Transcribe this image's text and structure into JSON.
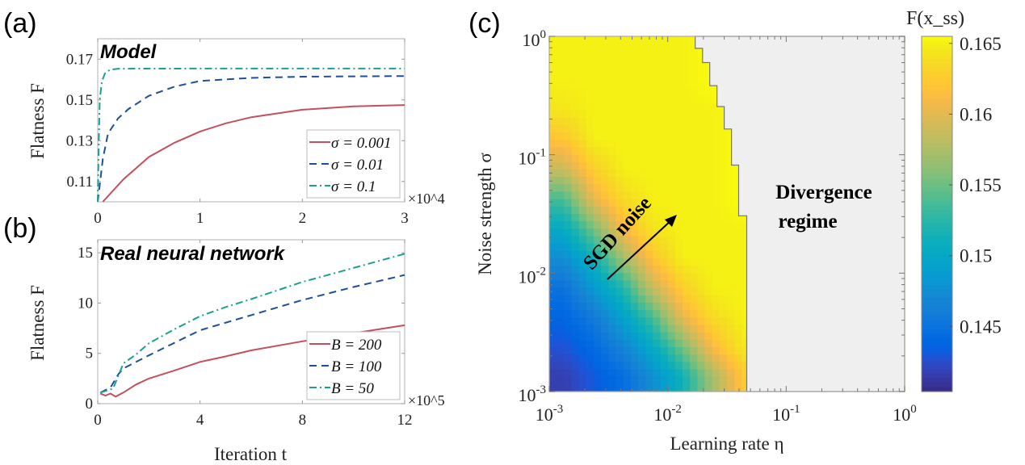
{
  "panels": {
    "a": {
      "label": "(a)"
    },
    "b": {
      "label": "(b)"
    },
    "c": {
      "label": "(c)"
    }
  },
  "chart_data": [
    {
      "type": "line",
      "panel": "a",
      "annotation": "Model",
      "ylabel": "Flatness F",
      "xlabel": "",
      "x_multiplier": "×10^4",
      "xlim": [
        0,
        3
      ],
      "ylim": [
        0.1,
        0.18
      ],
      "xticks": [
        0,
        1,
        2,
        3
      ],
      "xtick_labels": [
        "0",
        "1",
        "2",
        "3"
      ],
      "yticks": [
        0.11,
        0.13,
        0.15,
        0.17
      ],
      "ytick_labels": [
        "0.11",
        "0.13",
        "0.15",
        "0.17"
      ],
      "legend_position": "bottom-right",
      "series": [
        {
          "name": "σ = 0.001",
          "color": "#c4505f",
          "dash": "solid",
          "x": [
            0.05,
            0.25,
            0.5,
            0.75,
            1.0,
            1.25,
            1.5,
            2.0,
            2.5,
            3.0
          ],
          "y": [
            0.1,
            0.111,
            0.122,
            0.129,
            0.1345,
            0.1385,
            0.1415,
            0.1452,
            0.1468,
            0.1475
          ]
        },
        {
          "name": "σ = 0.01",
          "color": "#1f4f9c",
          "dash": "dashed",
          "x": [
            0.0,
            0.05,
            0.1,
            0.2,
            0.3,
            0.5,
            0.75,
            1.0,
            1.5,
            2.0,
            3.0
          ],
          "y": [
            0.1,
            0.121,
            0.1335,
            0.141,
            0.1455,
            0.152,
            0.1565,
            0.1593,
            0.1608,
            0.1614,
            0.1617
          ]
        },
        {
          "name": "σ = 0.1",
          "color": "#1aa08e",
          "dash": "dashdot",
          "x": [
            0.0,
            0.01,
            0.02,
            0.04,
            0.07,
            0.12,
            0.2,
            1.0,
            2.0,
            3.0
          ],
          "y": [
            0.1,
            0.13,
            0.15,
            0.159,
            0.163,
            0.1648,
            0.1653,
            0.1654,
            0.1654,
            0.1654
          ]
        }
      ]
    },
    {
      "type": "line",
      "panel": "b",
      "annotation": "Real neural network",
      "ylabel": "Flatness F",
      "xlabel": "Iteration t",
      "x_multiplier": "×10^5",
      "xlim": [
        0,
        12
      ],
      "ylim": [
        0,
        16.3
      ],
      "xticks": [
        0,
        4,
        8,
        12
      ],
      "xtick_labels": [
        "0",
        "4",
        "8",
        "12"
      ],
      "yticks": [
        0,
        5,
        10,
        15
      ],
      "ytick_labels": [
        "0",
        "5",
        "10",
        "15"
      ],
      "legend_position": "bottom-right",
      "series": [
        {
          "name": "B = 200",
          "color": "#c4505f",
          "dash": "solid",
          "x": [
            0.1,
            0.3,
            0.5,
            0.7,
            1.0,
            1.5,
            2,
            3,
            4,
            5,
            6,
            8,
            10,
            12
          ],
          "y": [
            1.0,
            0.8,
            1.0,
            0.7,
            1.1,
            1.9,
            2.5,
            3.3,
            4.15,
            4.7,
            5.3,
            6.2,
            7.0,
            7.8
          ]
        },
        {
          "name": "B = 100",
          "color": "#1f4f9c",
          "dash": "dashed",
          "x": [
            0.1,
            0.5,
            0.8,
            1.0,
            2,
            4,
            6,
            8,
            10,
            12
          ],
          "y": [
            1.1,
            1.6,
            2.9,
            3.5,
            4.8,
            7.3,
            8.8,
            10.3,
            11.6,
            12.8
          ]
        },
        {
          "name": "B = 50",
          "color": "#1aa08e",
          "dash": "dashdot",
          "x": [
            0.1,
            0.6,
            1.0,
            1.5,
            2,
            3,
            4,
            5,
            6,
            8,
            10,
            12
          ],
          "y": [
            1.1,
            1.5,
            4.0,
            4.9,
            6.0,
            7.4,
            8.7,
            9.6,
            10.4,
            12.1,
            13.5,
            14.9
          ]
        }
      ]
    },
    {
      "type": "heatmap",
      "panel": "c",
      "xlabel": "Learning rate η",
      "ylabel": "Noise strength σ",
      "colorbar_label": "F(x_ss)",
      "colorbar_label_main": "F(",
      "colorbar_label_bold": "x",
      "colorbar_label_sub": "ss",
      "colorbar_label_close": ")",
      "colormap": "parula",
      "clim": [
        0.1404,
        0.1655
      ],
      "colorbar_ticks": [
        0.145,
        0.15,
        0.155,
        0.16,
        0.165
      ],
      "colorbar_tick_labels": [
        "0.145",
        "0.15",
        "0.155",
        "0.16",
        "0.165"
      ],
      "x_scale": "log",
      "y_scale": "log",
      "xlim": [
        0.001,
        1
      ],
      "ylim": [
        0.001,
        1
      ],
      "xtick_labels": [
        [
          "10",
          "-3"
        ],
        [
          "10",
          "-2"
        ],
        [
          "10",
          "-1"
        ],
        [
          "10",
          "0"
        ]
      ],
      "ytick_labels": [
        [
          "10",
          "-3"
        ],
        [
          "10",
          "-2"
        ],
        [
          "10",
          "-1"
        ],
        [
          "10",
          "0"
        ]
      ],
      "x_log10_centers": [
        -2.875,
        -2.625,
        -2.375,
        -2.125,
        -1.875,
        -1.625,
        -1.375,
        -1.125,
        -0.875,
        -0.625,
        -0.375,
        -0.125
      ],
      "y_log10_centers_top_to_bottom": [
        -0.125,
        -0.375,
        -0.625,
        -0.875,
        -1.125,
        -1.375,
        -1.625,
        -1.875,
        -2.125,
        -2.375,
        -2.625,
        -2.875
      ],
      "values": [
        [
          0.165,
          0.165,
          0.165,
          0.165,
          0.165,
          null,
          null,
          null,
          null,
          null,
          null,
          null
        ],
        [
          0.165,
          0.165,
          0.165,
          0.165,
          0.165,
          null,
          null,
          null,
          null,
          null,
          null,
          null
        ],
        [
          0.1644,
          0.165,
          0.165,
          0.165,
          0.165,
          0.165,
          null,
          null,
          null,
          null,
          null,
          null
        ],
        [
          0.162,
          0.165,
          0.165,
          0.165,
          0.165,
          0.165,
          null,
          null,
          null,
          null,
          null,
          null
        ],
        [
          0.1587,
          0.1628,
          0.165,
          0.165,
          0.165,
          0.165,
          null,
          null,
          null,
          null,
          null,
          null
        ],
        [
          0.1537,
          0.1603,
          0.1636,
          0.165,
          0.165,
          0.165,
          null,
          null,
          null,
          null,
          null,
          null
        ],
        [
          0.1503,
          0.1553,
          0.1612,
          0.1644,
          0.165,
          0.165,
          0.165,
          null,
          null,
          null,
          null,
          null
        ],
        [
          0.1475,
          0.1513,
          0.157,
          0.162,
          0.165,
          0.165,
          0.165,
          null,
          null,
          null,
          null,
          null
        ],
        [
          0.1449,
          0.1485,
          0.1522,
          0.1587,
          0.1628,
          0.165,
          0.165,
          null,
          null,
          null,
          null,
          null
        ],
        [
          0.1438,
          0.1457,
          0.1494,
          0.1537,
          0.1603,
          0.1636,
          0.165,
          null,
          null,
          null,
          null,
          null
        ],
        [
          0.1428,
          0.1442,
          0.1466,
          0.1503,
          0.1553,
          0.1612,
          0.1644,
          null,
          null,
          null,
          null,
          null
        ],
        [
          0.1417,
          0.1431,
          0.1445,
          0.1475,
          0.1513,
          0.157,
          0.162,
          null,
          null,
          null,
          null,
          null
        ]
      ],
      "divergence_boundary": [
        {
          "sigma_min": 0.792,
          "sigma_max": 1.0,
          "eta_max": 0.01706
        },
        {
          "sigma_min": 0.6,
          "sigma_max": 0.792,
          "eta_max": 0.01968
        },
        {
          "sigma_min": 0.383,
          "sigma_max": 0.6,
          "eta_max": 0.02265
        },
        {
          "sigma_min": 0.255,
          "sigma_max": 0.383,
          "eta_max": 0.02606
        },
        {
          "sigma_min": 0.165,
          "sigma_max": 0.255,
          "eta_max": 0.02999
        },
        {
          "sigma_min": 0.0817,
          "sigma_max": 0.165,
          "eta_max": 0.03451
        },
        {
          "sigma_min": 0.0305,
          "sigma_max": 0.0817,
          "eta_max": 0.03972
        },
        {
          "sigma_min": 0.001,
          "sigma_max": 0.0305,
          "eta_max": 0.04645
        }
      ],
      "divergence_color": "#efefef",
      "annotations": {
        "divergence_line1": "Divergence",
        "divergence_line2": "regime",
        "arrow_label": "SGD noise"
      }
    }
  ]
}
